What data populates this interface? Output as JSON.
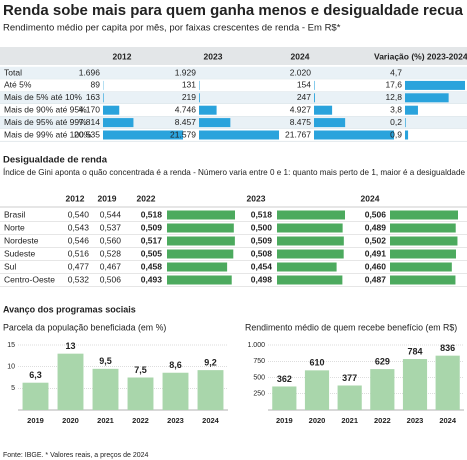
{
  "header": {
    "title": "Renda sobe mais para quem ganha menos e desigualdade recua",
    "subtitle": "Rendimento médio per capita por mês, por faixas crescentes de renda - Em R$*"
  },
  "income_table": {
    "columns": [
      "2012",
      "2023",
      "2024",
      "Variação (%) 2023-2024"
    ],
    "rows": [
      {
        "label": "Total",
        "cells": [
          {
            "value": 1696,
            "label": "1.696"
          },
          {
            "value": 1929,
            "label": "1.929"
          },
          {
            "value": 2020,
            "label": "2.020"
          },
          {
            "value": 4.7,
            "label": "4,7"
          }
        ]
      },
      {
        "label": "Até 5%",
        "cells": [
          {
            "value": 89,
            "label": "89"
          },
          {
            "value": 131,
            "label": "131"
          },
          {
            "value": 154,
            "label": "154"
          },
          {
            "value": 17.6,
            "label": "17,6"
          }
        ]
      },
      {
        "label": "Mais de 5% até 10%",
        "cells": [
          {
            "value": 163,
            "label": "163"
          },
          {
            "value": 219,
            "label": "219"
          },
          {
            "value": 247,
            "label": "247"
          },
          {
            "value": 12.8,
            "label": "12,8"
          }
        ]
      },
      {
        "label": "Mais de 90% até 95%",
        "cells": [
          {
            "value": 4170,
            "label": "4.170"
          },
          {
            "value": 4746,
            "label": "4.746"
          },
          {
            "value": 4927,
            "label": "4.927"
          },
          {
            "value": 3.8,
            "label": "3,8"
          }
        ]
      },
      {
        "label": "Mais de 95% até 99%",
        "cells": [
          {
            "value": 7814,
            "label": "7.814"
          },
          {
            "value": 8457,
            "label": "8.457"
          },
          {
            "value": 8475,
            "label": "8.475"
          },
          {
            "value": 0.2,
            "label": "0,2"
          }
        ]
      },
      {
        "label": "Mais de 99% até 100%",
        "cells": [
          {
            "value": 20535,
            "label": "20.535"
          },
          {
            "value": 21579,
            "label": "21.579"
          },
          {
            "value": 21767,
            "label": "21.767"
          },
          {
            "value": 0.9,
            "label": "0,9"
          }
        ]
      }
    ]
  },
  "gini_section": {
    "title": "Desigualdade de renda",
    "subtitle": "Índice de Gini aponta o quão concentrada é a renda - Número varia entre 0 e 1: quanto mais perto de 1, maior é a desigualdade"
  },
  "gini_table": {
    "columns": [
      "2012",
      "2019",
      "2022",
      "2023",
      "2024"
    ],
    "rows": [
      {
        "label": "Brasil",
        "cells": [
          {
            "value": 0.54,
            "label": "0,540"
          },
          {
            "value": 0.544,
            "label": "0,544"
          },
          {
            "value": 0.518,
            "label": "0,518"
          },
          {
            "value": 0.518,
            "label": "0,518"
          },
          {
            "value": 0.506,
            "label": "0,506"
          }
        ]
      },
      {
        "label": "Norte",
        "cells": [
          {
            "value": 0.543,
            "label": "0,543"
          },
          {
            "value": 0.537,
            "label": "0,537"
          },
          {
            "value": 0.509,
            "label": "0,509"
          },
          {
            "value": 0.5,
            "label": "0,500"
          },
          {
            "value": 0.489,
            "label": "0,489"
          }
        ]
      },
      {
        "label": "Nordeste",
        "cells": [
          {
            "value": 0.546,
            "label": "0,546"
          },
          {
            "value": 0.56,
            "label": "0,560"
          },
          {
            "value": 0.517,
            "label": "0,517"
          },
          {
            "value": 0.509,
            "label": "0,509"
          },
          {
            "value": 0.502,
            "label": "0,502"
          }
        ]
      },
      {
        "label": "Sudeste",
        "cells": [
          {
            "value": 0.516,
            "label": "0,516"
          },
          {
            "value": 0.528,
            "label": "0,528"
          },
          {
            "value": 0.505,
            "label": "0,505"
          },
          {
            "value": 0.508,
            "label": "0,508"
          },
          {
            "value": 0.491,
            "label": "0,491"
          }
        ]
      },
      {
        "label": "Sul",
        "cells": [
          {
            "value": 0.477,
            "label": "0,477"
          },
          {
            "value": 0.467,
            "label": "0,467"
          },
          {
            "value": 0.458,
            "label": "0,458"
          },
          {
            "value": 0.454,
            "label": "0,454"
          },
          {
            "value": 0.46,
            "label": "0,460"
          }
        ]
      },
      {
        "label": "Centro-Oeste",
        "cells": [
          {
            "value": 0.532,
            "label": "0,532"
          },
          {
            "value": 0.506,
            "label": "0,506"
          },
          {
            "value": 0.493,
            "label": "0,493"
          },
          {
            "value": 0.498,
            "label": "0,498"
          },
          {
            "value": 0.487,
            "label": "0,487"
          }
        ]
      }
    ]
  },
  "programs_title": "Avanço dos programas sociais",
  "chart_data": [
    {
      "type": "bar",
      "title": "Parcela da população beneficiada (em %)",
      "categories": [
        "2019",
        "2020",
        "2021",
        "2022",
        "2023",
        "2024"
      ],
      "values": [
        6.3,
        13,
        9.5,
        7.5,
        8.6,
        9.2
      ],
      "value_labels": [
        "6,3",
        "13",
        "9,5",
        "7,5",
        "8,6",
        "9,2"
      ],
      "color": "#a9d6ab",
      "ylim": [
        0,
        15
      ],
      "yticks": [
        5,
        10,
        15
      ],
      "grid": true
    },
    {
      "type": "bar",
      "title": "Rendimento médio de quem recebe benefício (em R$)",
      "categories": [
        "2019",
        "2020",
        "2021",
        "2022",
        "2023",
        "2024"
      ],
      "values": [
        362,
        610,
        377,
        629,
        784,
        836
      ],
      "value_labels": [
        "362",
        "610",
        "377",
        "629",
        "784",
        "836"
      ],
      "color": "#a9d6ab",
      "ylim": [
        0,
        1000
      ],
      "yticks": [
        250,
        500,
        750,
        {
          "value": 1000,
          "label": "1.000"
        }
      ],
      "grid": true
    }
  ],
  "footer": "Fonte: IBGE. * Valores reais, a preços de 2024"
}
